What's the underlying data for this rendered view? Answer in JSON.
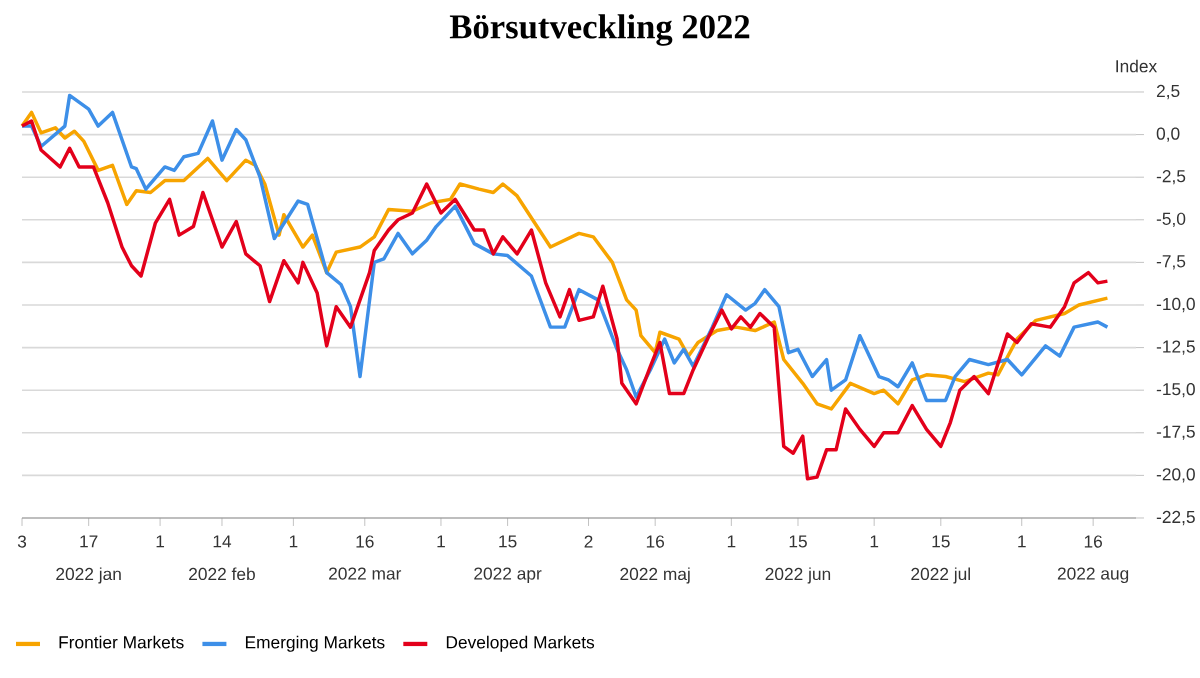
{
  "chart_data": {
    "type": "line",
    "title": "Börsutveckling 2022",
    "ylabel": "Index",
    "xlim": [
      "2022-01-03",
      "2022-08-25"
    ],
    "xticks": [
      {
        "value": "2022-01-03",
        "label": "3"
      },
      {
        "value": "2022-01-17",
        "label": "17"
      },
      {
        "value": "2022-02-01",
        "label": "1"
      },
      {
        "value": "2022-02-14",
        "label": "14"
      },
      {
        "value": "2022-03-01",
        "label": "1"
      },
      {
        "value": "2022-03-16",
        "label": "16"
      },
      {
        "value": "2022-04-01",
        "label": "1"
      },
      {
        "value": "2022-04-15",
        "label": "15"
      },
      {
        "value": "2022-05-02",
        "label": "2"
      },
      {
        "value": "2022-05-16",
        "label": "16"
      },
      {
        "value": "2022-06-01",
        "label": "1"
      },
      {
        "value": "2022-06-15",
        "label": "15"
      },
      {
        "value": "2022-07-01",
        "label": "1"
      },
      {
        "value": "2022-07-15",
        "label": "15"
      },
      {
        "value": "2022-08-01",
        "label": "1"
      },
      {
        "value": "2022-08-16",
        "label": "16"
      }
    ],
    "ylim": [
      -22.5,
      2.5
    ],
    "yticks": [
      {
        "value": -22.5,
        "label": "-22,5"
      },
      {
        "value": -20,
        "label": "-20,0"
      },
      {
        "value": -17.5,
        "label": "-17,5"
      },
      {
        "value": -15,
        "label": "-15,0"
      },
      {
        "value": -12.5,
        "label": "-12,5"
      },
      {
        "value": -10,
        "label": "-10,0"
      },
      {
        "value": -7.5,
        "label": "-7,5"
      },
      {
        "value": -5,
        "label": "-5,0"
      },
      {
        "value": -2.5,
        "label": "-2,5"
      },
      {
        "value": 0,
        "label": "0,0"
      },
      {
        "value": 2.5,
        "label": "2,5"
      }
    ],
    "grid": "y",
    "legend": "bottom",
    "annotations": [
      "2022 jan",
      "2022 feb",
      "2022 mar",
      "2022 apr",
      "2022 maj",
      "2022 jun",
      "2022 jul",
      "2022 aug"
    ],
    "series": [
      {
        "name": "Frontier Markets",
        "color": "#f7a400",
        "x": [
          "2022-01-03",
          "2022-01-05",
          "2022-01-07",
          "2022-01-10",
          "2022-01-12",
          "2022-01-14",
          "2022-01-16",
          "2022-01-19",
          "2022-01-22",
          "2022-01-25",
          "2022-01-27",
          "2022-01-30",
          "2022-02-02",
          "2022-02-06",
          "2022-02-11",
          "2022-02-15",
          "2022-02-19",
          "2022-02-21",
          "2022-02-23",
          "2022-02-26",
          "2022-02-27",
          "2022-03-03",
          "2022-03-05",
          "2022-03-08",
          "2022-03-10",
          "2022-03-15",
          "2022-03-18",
          "2022-03-21",
          "2022-03-26",
          "2022-03-30",
          "2022-04-03",
          "2022-04-05",
          "2022-04-09",
          "2022-04-12",
          "2022-04-14",
          "2022-04-17",
          "2022-04-24",
          "2022-04-30",
          "2022-05-03",
          "2022-05-07",
          "2022-05-10",
          "2022-05-12",
          "2022-05-13",
          "2022-05-16",
          "2022-05-17",
          "2022-05-21",
          "2022-05-23",
          "2022-05-25",
          "2022-05-29",
          "2022-06-02",
          "2022-06-06",
          "2022-06-10",
          "2022-06-12",
          "2022-06-16",
          "2022-06-19",
          "2022-06-22",
          "2022-06-26",
          "2022-07-01",
          "2022-07-03",
          "2022-07-06",
          "2022-07-09",
          "2022-07-12",
          "2022-07-16",
          "2022-07-20",
          "2022-07-25",
          "2022-07-27",
          "2022-07-31",
          "2022-08-04",
          "2022-08-10",
          "2022-08-13",
          "2022-08-19"
        ],
        "values": [
          0.5,
          1.3,
          0.1,
          0.4,
          -0.2,
          0.2,
          -0.4,
          -2.1,
          -1.8,
          -4.1,
          -3.3,
          -3.4,
          -2.7,
          -2.7,
          -1.4,
          -2.7,
          -1.5,
          -1.8,
          -2.9,
          -5.9,
          -4.7,
          -6.6,
          -5.9,
          -8.1,
          -6.9,
          -6.6,
          -6.0,
          -4.4,
          -4.5,
          -4.0,
          -3.8,
          -2.9,
          -3.2,
          -3.4,
          -2.9,
          -3.6,
          -6.6,
          -5.8,
          -6.0,
          -7.5,
          -9.7,
          -10.3,
          -11.8,
          -12.8,
          -11.6,
          -12.0,
          -13.0,
          -12.2,
          -11.5,
          -11.3,
          -11.5,
          -11.0,
          -13.2,
          -14.6,
          -15.8,
          -16.1,
          -14.6,
          -15.2,
          -15.0,
          -15.8,
          -14.4,
          -14.1,
          -14.2,
          -14.5,
          -14.0,
          -14.1,
          -12.0,
          -10.9,
          -10.5,
          -10.0,
          -9.6
        ]
      },
      {
        "name": "Emerging Markets",
        "color": "#3d8fe8",
        "x": [
          "2022-01-03",
          "2022-01-05",
          "2022-01-07",
          "2022-01-12",
          "2022-01-13",
          "2022-01-17",
          "2022-01-19",
          "2022-01-22",
          "2022-01-26",
          "2022-01-27",
          "2022-01-29",
          "2022-02-02",
          "2022-02-04",
          "2022-02-06",
          "2022-02-09",
          "2022-02-12",
          "2022-02-14",
          "2022-02-17",
          "2022-02-19",
          "2022-02-22",
          "2022-02-25",
          "2022-03-02",
          "2022-03-04",
          "2022-03-08",
          "2022-03-11",
          "2022-03-13",
          "2022-03-15",
          "2022-03-18",
          "2022-03-20",
          "2022-03-23",
          "2022-03-26",
          "2022-03-29",
          "2022-03-31",
          "2022-04-04",
          "2022-04-08",
          "2022-04-12",
          "2022-04-15",
          "2022-04-20",
          "2022-04-24",
          "2022-04-27",
          "2022-04-30",
          "2022-05-04",
          "2022-05-08",
          "2022-05-10",
          "2022-05-12",
          "2022-05-15",
          "2022-05-18",
          "2022-05-20",
          "2022-05-22",
          "2022-05-24",
          "2022-05-28",
          "2022-05-31",
          "2022-06-04",
          "2022-06-06",
          "2022-06-08",
          "2022-06-11",
          "2022-06-13",
          "2022-06-15",
          "2022-06-18",
          "2022-06-21",
          "2022-06-22",
          "2022-06-25",
          "2022-06-28",
          "2022-07-02",
          "2022-07-04",
          "2022-07-06",
          "2022-07-09",
          "2022-07-12",
          "2022-07-16",
          "2022-07-18",
          "2022-07-21",
          "2022-07-25",
          "2022-07-29",
          "2022-08-01",
          "2022-08-06",
          "2022-08-09",
          "2022-08-12",
          "2022-08-17",
          "2022-08-19"
        ],
        "values": [
          0.5,
          0.5,
          -0.7,
          0.5,
          2.3,
          1.5,
          0.5,
          1.3,
          -1.9,
          -2.0,
          -3.2,
          -1.9,
          -2.1,
          -1.3,
          -1.1,
          0.8,
          -1.5,
          0.3,
          -0.3,
          -2.5,
          -6.1,
          -3.9,
          -4.1,
          -8.1,
          -8.8,
          -10.1,
          -14.2,
          -7.5,
          -7.3,
          -5.8,
          -7.0,
          -6.2,
          -5.4,
          -4.2,
          -6.4,
          -7.0,
          -7.1,
          -8.3,
          -11.3,
          -11.3,
          -9.1,
          -9.7,
          -12.6,
          -13.8,
          -15.4,
          -13.8,
          -12.0,
          -13.4,
          -12.6,
          -13.6,
          -11.3,
          -9.4,
          -10.3,
          -9.9,
          -9.1,
          -10.1,
          -12.8,
          -12.6,
          -14.2,
          -13.2,
          -15.0,
          -14.4,
          -11.8,
          -14.2,
          -14.4,
          -14.8,
          -13.4,
          -15.6,
          -15.6,
          -14.2,
          -13.2,
          -13.5,
          -13.2,
          -14.1,
          -12.4,
          -13.0,
          -11.3,
          -11.0,
          -11.3
        ]
      },
      {
        "name": "Developed Markets",
        "color": "#e3001b",
        "x": [
          "2022-01-03",
          "2022-01-05",
          "2022-01-07",
          "2022-01-11",
          "2022-01-13",
          "2022-01-15",
          "2022-01-18",
          "2022-01-21",
          "2022-01-24",
          "2022-01-26",
          "2022-01-28",
          "2022-01-31",
          "2022-02-03",
          "2022-02-05",
          "2022-02-08",
          "2022-02-10",
          "2022-02-14",
          "2022-02-17",
          "2022-02-19",
          "2022-02-22",
          "2022-02-24",
          "2022-02-27",
          "2022-03-02",
          "2022-03-03",
          "2022-03-06",
          "2022-03-08",
          "2022-03-10",
          "2022-03-13",
          "2022-03-17",
          "2022-03-18",
          "2022-03-21",
          "2022-03-23",
          "2022-03-26",
          "2022-03-29",
          "2022-04-01",
          "2022-04-04",
          "2022-04-08",
          "2022-04-10",
          "2022-04-12",
          "2022-04-14",
          "2022-04-17",
          "2022-04-20",
          "2022-04-23",
          "2022-04-26",
          "2022-04-28",
          "2022-04-30",
          "2022-05-03",
          "2022-05-05",
          "2022-05-08",
          "2022-05-09",
          "2022-05-12",
          "2022-05-15",
          "2022-05-17",
          "2022-05-19",
          "2022-05-22",
          "2022-05-24",
          "2022-05-27",
          "2022-05-30",
          "2022-06-01",
          "2022-06-03",
          "2022-06-05",
          "2022-06-07",
          "2022-06-10",
          "2022-06-12",
          "2022-06-14",
          "2022-06-16",
          "2022-06-17",
          "2022-06-19",
          "2022-06-21",
          "2022-06-23",
          "2022-06-25",
          "2022-06-28",
          "2022-07-01",
          "2022-07-03",
          "2022-07-06",
          "2022-07-09",
          "2022-07-12",
          "2022-07-15",
          "2022-07-17",
          "2022-07-19",
          "2022-07-22",
          "2022-07-25",
          "2022-07-29",
          "2022-07-31",
          "2022-08-03",
          "2022-08-07",
          "2022-08-10",
          "2022-08-12",
          "2022-08-15",
          "2022-08-17",
          "2022-08-19"
        ],
        "values": [
          0.5,
          0.8,
          -0.9,
          -1.9,
          -0.8,
          -1.9,
          -1.9,
          -4.0,
          -6.6,
          -7.7,
          -8.3,
          -5.2,
          -3.8,
          -5.9,
          -5.4,
          -3.4,
          -6.6,
          -5.1,
          -7.0,
          -7.7,
          -9.8,
          -7.4,
          -8.7,
          -7.5,
          -9.3,
          -12.4,
          -10.1,
          -11.3,
          -8.1,
          -6.8,
          -5.6,
          -5.0,
          -4.6,
          -2.9,
          -4.6,
          -3.8,
          -5.6,
          -5.6,
          -7.0,
          -6.0,
          -7.0,
          -5.6,
          -8.7,
          -10.7,
          -9.1,
          -10.9,
          -10.7,
          -8.9,
          -12.0,
          -14.6,
          -15.8,
          -13.6,
          -12.2,
          -15.2,
          -15.2,
          -13.8,
          -12.0,
          -10.3,
          -11.4,
          -10.7,
          -11.3,
          -10.5,
          -11.3,
          -18.3,
          -18.7,
          -17.7,
          -20.2,
          -20.1,
          -18.5,
          -18.5,
          -16.1,
          -17.3,
          -18.3,
          -17.5,
          -17.5,
          -15.9,
          -17.3,
          -18.3,
          -16.9,
          -15.0,
          -14.2,
          -15.2,
          -11.7,
          -12.2,
          -11.1,
          -11.3,
          -10.1,
          -8.7,
          -8.1,
          -8.7,
          -8.6
        ]
      }
    ]
  }
}
